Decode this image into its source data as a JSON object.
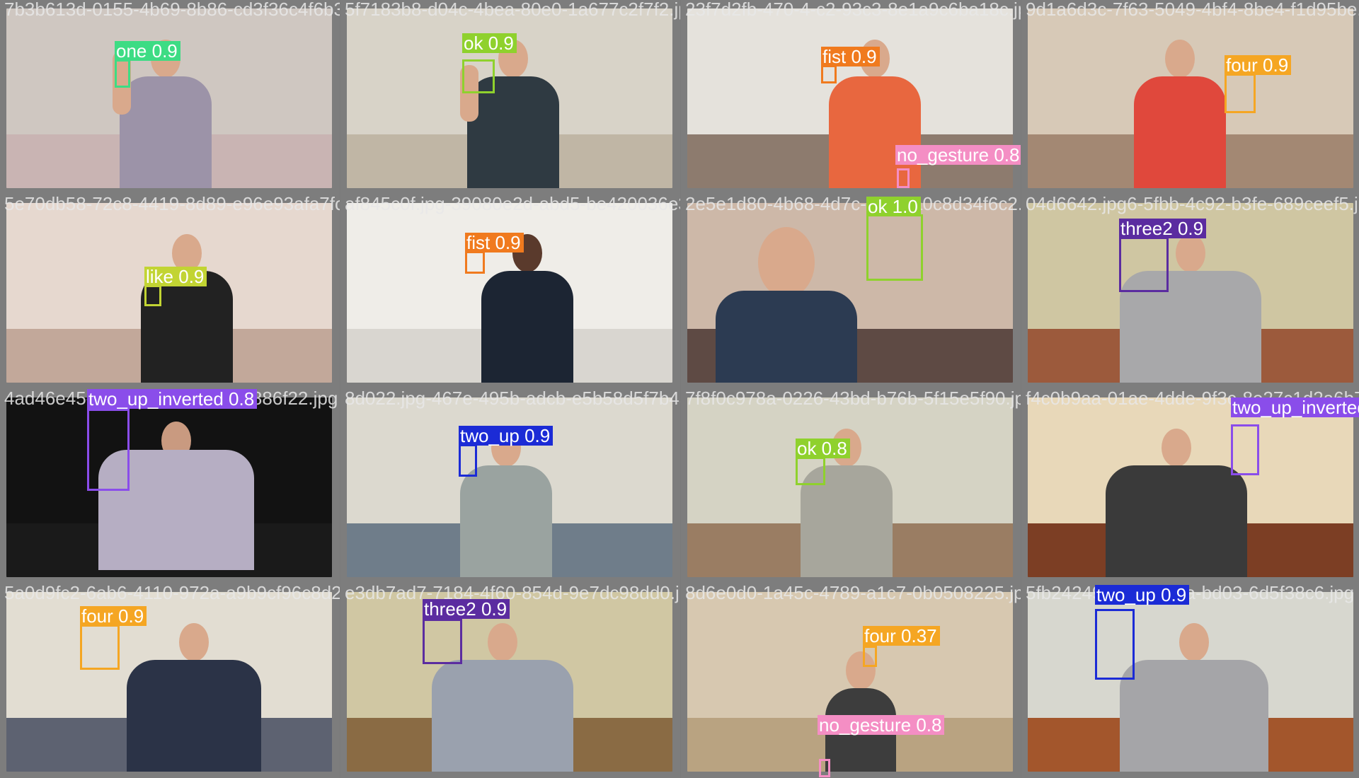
{
  "tiles": [
    {
      "file": "7b3b613d-0155-4b69-8b86-cd3f36c4f6b3.jpg",
      "label": "one 0.9",
      "color": "#3ddc84",
      "scene": {
        "wall": "#cfc7c1",
        "floor": "#c9b4b3",
        "shirt": "#9c93a8"
      }
    },
    {
      "file": "5f7183b8-d04c-4bea-80e0-1a677c2f7f2.jpg",
      "label": "ok 0.9",
      "color": "#8fd12d",
      "scene": {
        "wall": "#d8d3c8",
        "floor": "#c0b6a5",
        "shirt": "#2f3a42"
      }
    },
    {
      "file": "23f7d2fb-470-4-c2-93c3-8e1a9c6ba18c.jpg",
      "label": "fist 0.9",
      "color": "#f07a1e",
      "scene": {
        "wall": "#e5e2dc",
        "floor": "#8d7b6e",
        "shirt": "#e8673f"
      },
      "extra": {
        "label": "no_gesture 0.8",
        "color": "#f48ec4"
      }
    },
    {
      "file": "9d1a6d3c-7f63-5049-4bf4-8be4-f1d95be.jpg",
      "label": "four 0.9",
      "color": "#f5a623",
      "scene": {
        "wall": "#d7c9b7",
        "floor": "#a38873",
        "shirt": "#e0483c"
      }
    },
    {
      "file": "5e70db58-72c8-4419-8d89-e96e93afa7fc4.jpg",
      "label": "like 0.9",
      "color": "#c2d433",
      "scene": {
        "wall": "#e6d8cf",
        "floor": "#c2a89a",
        "shirt": "#222222"
      }
    },
    {
      "file": "af845c0f.jpg-39080e2d-abd5-be420036e39a-e256b-41.jpg",
      "label": "fist 0.9",
      "color": "#f07a1e",
      "scene": {
        "wall": "#efede8",
        "floor": "#d9d6d0",
        "shirt": "#1c2533"
      }
    },
    {
      "file": "2e5e1d80-4b68-4d7c-9b8c-a0c8d34f6c2.jpg",
      "label": "ok 1.0",
      "color": "#8fd12d",
      "scene": {
        "wall": "#cdb8a8",
        "floor": "#5e4a44",
        "shirt": "#2c3b52"
      }
    },
    {
      "file": "04d6642.jpg6-5fbb-4c92-b3fe-689ceef5.jpg",
      "label": "three2 0.9",
      "color": "#5b2ca0",
      "scene": {
        "wall": "#cfc6a2",
        "floor": "#9c5a3c",
        "shirt": "#a8a8aa"
      }
    },
    {
      "file": "4ad46e45-4c12-9b0f-bd16341886f22.jpg",
      "label": "two_up_inverted 0.8",
      "color": "#8a4dea",
      "scene": {
        "wall": "#121212",
        "floor": "#1a1a1a",
        "shirt": "#b6aec3"
      }
    },
    {
      "file": "8d022.jpg-467e-495b-adcb-e5b58d5f7b43.jpg",
      "label": "two_up 0.9",
      "color": "#1b2bd6",
      "scene": {
        "wall": "#dcd9cf",
        "floor": "#6f7d8a",
        "shirt": "#9aa3a0"
      }
    },
    {
      "file": "7f8f0c978a-0226-43bd-b76b-5f15e5f90.jpg",
      "label": "ok 0.8",
      "color": "#8fd12d",
      "scene": {
        "wall": "#d5d3c4",
        "floor": "#9a7d63",
        "shirt": "#a7a69c"
      }
    },
    {
      "file": "f4c0b9aa-01ae-4dde-9f3c-8e27c1d2a6b7.jpg",
      "label": "two_up_inverted",
      "color": "#8a4dea",
      "scene": {
        "wall": "#e8d8b9",
        "floor": "#7c3e24",
        "shirt": "#3a3a3a"
      }
    },
    {
      "file": "5a0d9fc2-6ab6-4110-972a-a9b9cf96c8d2.jpg",
      "label": "four 0.9",
      "color": "#f5a623",
      "scene": {
        "wall": "#e2ddd2",
        "floor": "#5d6271",
        "shirt": "#2b3347"
      }
    },
    {
      "file": "e3db7ad7-7184-4f60-854d-9e7dc98dd0.jpg",
      "label": "three2 0.9",
      "color": "#5b2ca0",
      "scene": {
        "wall": "#d0c7a3",
        "floor": "#8a6b44",
        "shirt": "#9aa1ae"
      }
    },
    {
      "file": "8d6e0d0-1a45c-4789-a1c7-0b0508225.jpg",
      "label": "four 0.37",
      "color": "#f5a623",
      "scene": {
        "wall": "#d7c8b0",
        "floor": "#b9a381",
        "shirt": "#3d3d3d"
      },
      "extra": {
        "label": "no_gesture 0.8",
        "color": "#f48ec4"
      }
    },
    {
      "file": "5fb24249-1c3d-4b1a-bd03-6d5f38c6.jpg",
      "label": "two_up 0.9",
      "color": "#1b2bd6",
      "scene": {
        "wall": "#d7d7cf",
        "floor": "#a3562c",
        "shirt": "#a5a5a8"
      }
    }
  ]
}
